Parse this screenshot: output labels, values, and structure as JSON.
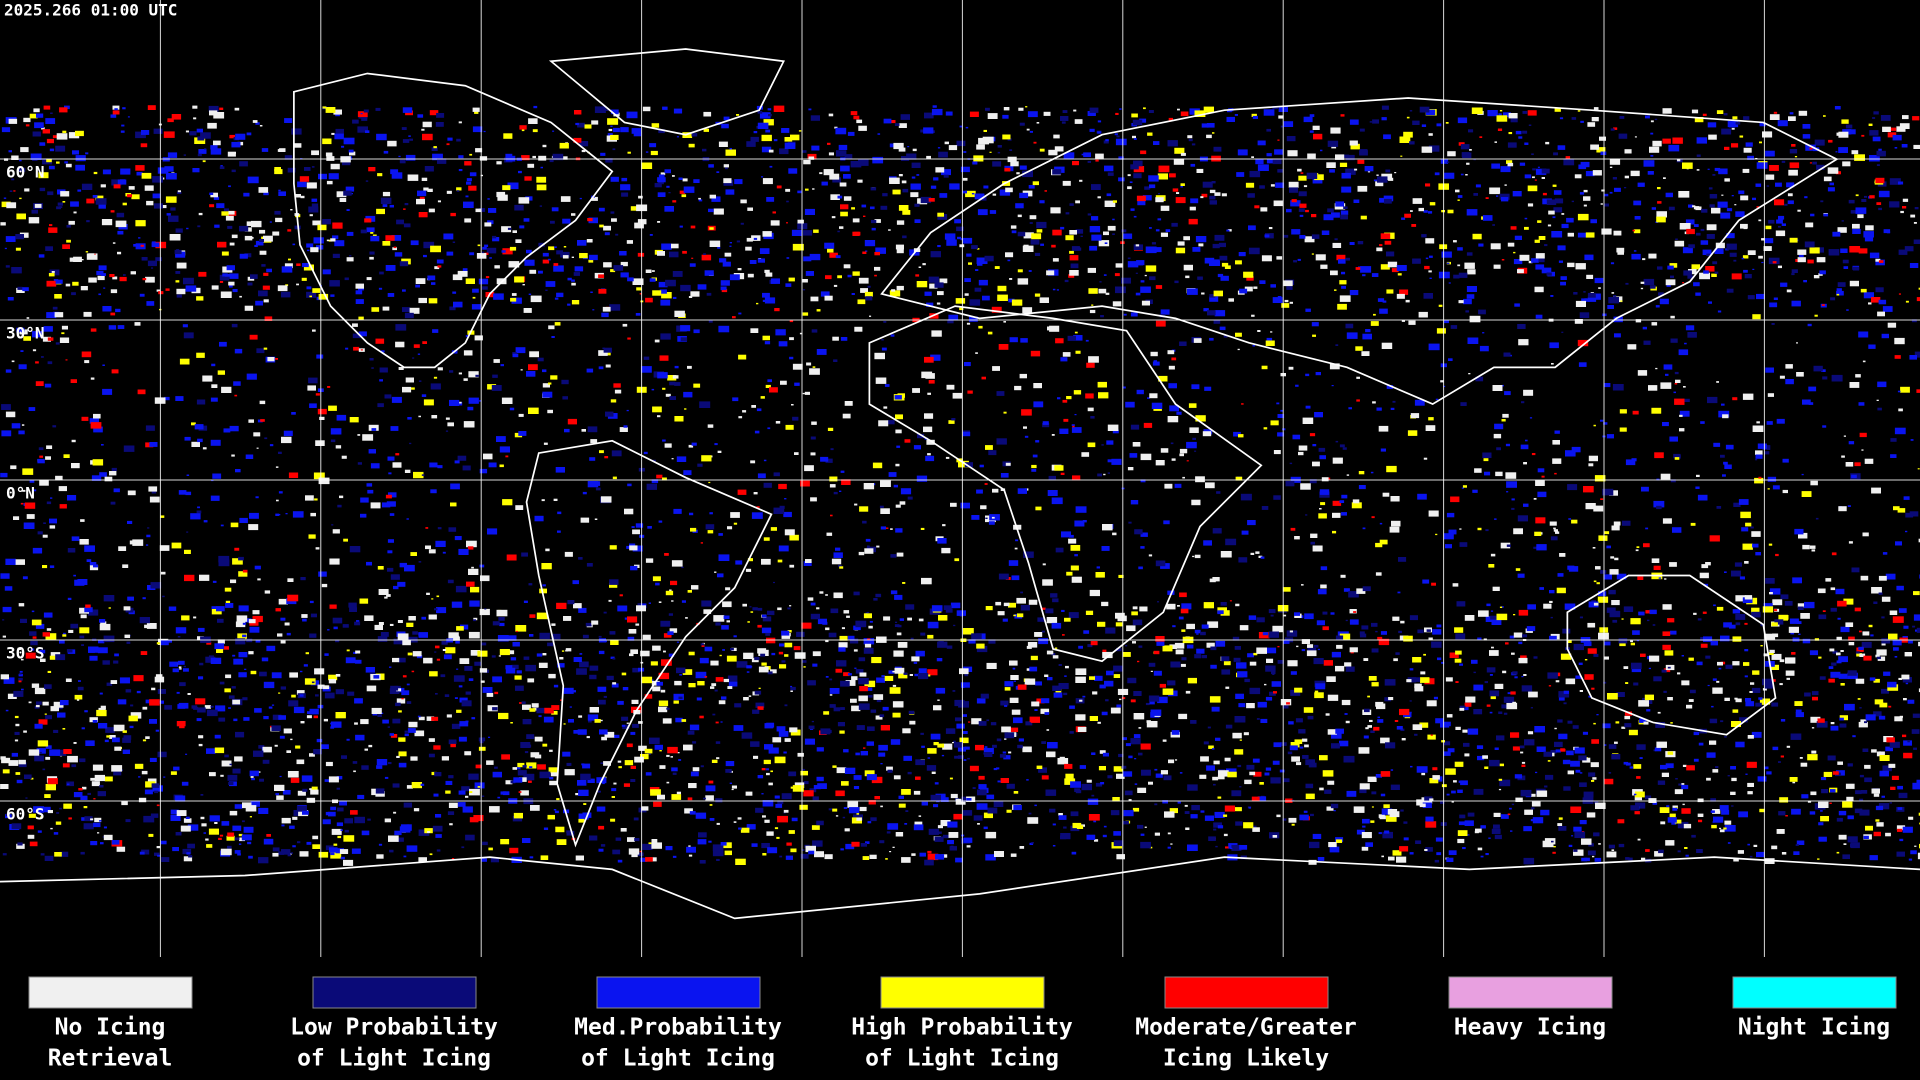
{
  "timestamp": "2025.266 01:00 UTC",
  "lat_labels": [
    "60°N",
    "30°N",
    "0°N",
    "30°S",
    "60°S"
  ],
  "legend": [
    {
      "color": "#f0f0f0",
      "label": [
        "No Icing",
        "Retrieval"
      ]
    },
    {
      "color": "#0a0a78",
      "label": [
        "Low Probability",
        "of Light Icing"
      ]
    },
    {
      "color": "#0a14f0",
      "label": [
        "Med.Probability",
        "of Light Icing"
      ]
    },
    {
      "color": "#ffff00",
      "label": [
        "High Probability",
        "of Light Icing"
      ]
    },
    {
      "color": "#ff0000",
      "label": [
        "Moderate/Greater",
        "Icing Likely"
      ]
    },
    {
      "color": "#e8a0e0",
      "label": [
        "Heavy Icing"
      ]
    },
    {
      "color": "#00ffff",
      "label": [
        "Night Icing"
      ]
    }
  ]
}
